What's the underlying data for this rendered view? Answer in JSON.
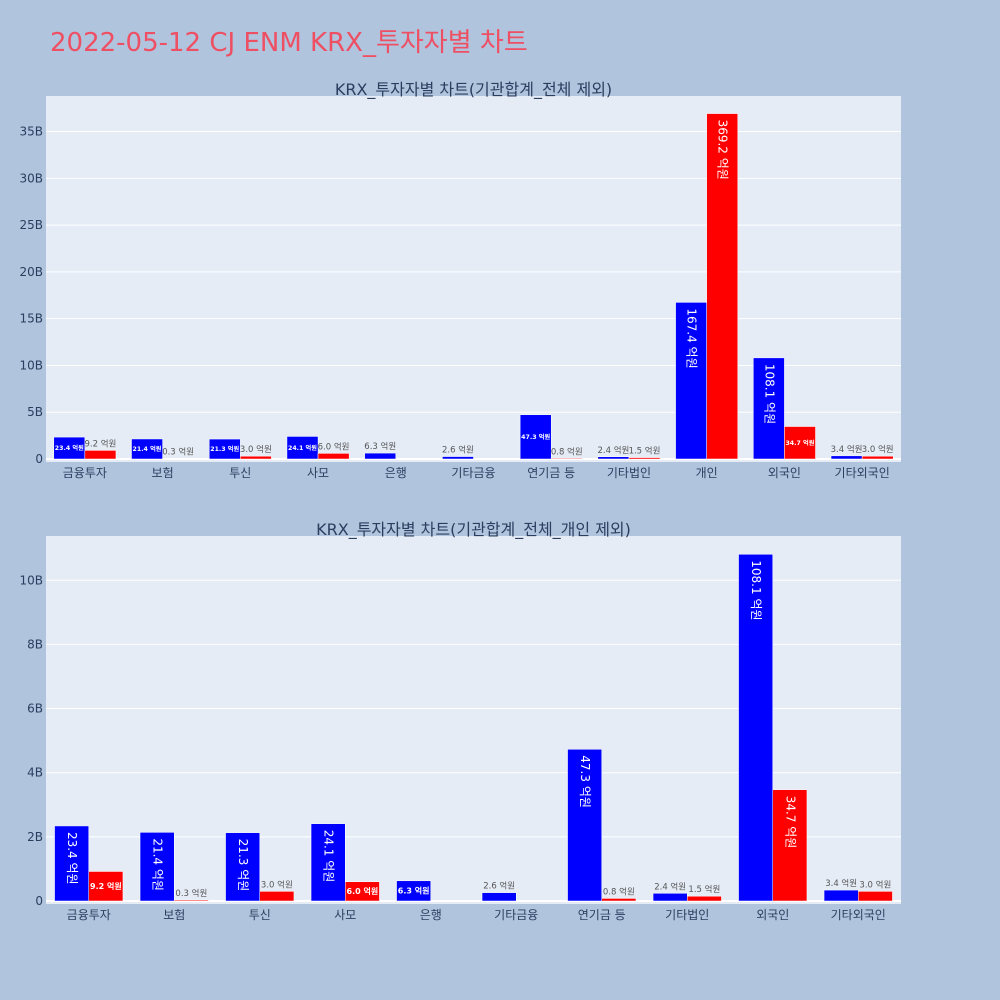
{
  "title": "2022-05-12 CJ ENM KRX_투자자별 차트",
  "colors": {
    "buy": "#0000ff",
    "sell": "#ff0000",
    "title": "#ef4f63",
    "plot_bg": "#e5ecf6",
    "page_bg": "#b0c4de"
  },
  "chart_data": [
    {
      "type": "bar",
      "title": "KRX_투자자별 차트(기관합계_전체 제외)",
      "categories": [
        "금융투자",
        "보험",
        "투신",
        "사모",
        "은행",
        "기타금융",
        "연기금 등",
        "기타법인",
        "개인",
        "외국인",
        "기타외국인"
      ],
      "series": [
        {
          "values": [
            2340000000,
            2140000000,
            2130000000,
            2410000000,
            630000000,
            260000000,
            4730000000,
            240000000,
            16740000000,
            10810000000,
            340000000
          ],
          "labels": [
            "23.4 억원",
            "21.4 억원",
            "21.3 억원",
            "24.1 억원",
            "6.3 억원",
            "2.6 억원",
            "47.3 억원",
            "2.4 억원",
            "167.4 억원",
            "108.1 억원",
            "3.4 억원"
          ]
        },
        {
          "values": [
            920000000,
            30000000,
            300000000,
            600000000,
            0,
            0,
            80000000,
            150000000,
            36920000000,
            3470000000,
            300000000
          ],
          "labels": [
            "9.2 억원",
            "0.3 억원",
            "3.0 억원",
            "6.0 억원",
            "",
            "",
            "0.8 억원",
            "1.5 억원",
            "369.2 억원",
            "34.7 억원",
            "3.0 억원"
          ]
        }
      ],
      "yticks": [
        0,
        5000000000,
        10000000000,
        15000000000,
        20000000000,
        25000000000,
        30000000000,
        35000000000
      ],
      "ytick_labels": [
        "0",
        "5B",
        "10B",
        "15B",
        "20B",
        "25B",
        "30B",
        "35B"
      ],
      "ylim": [
        0,
        38800000000
      ]
    },
    {
      "type": "bar",
      "title": "KRX_투자자별 차트(기관합계_전체_개인 제외)",
      "categories": [
        "금융투자",
        "보험",
        "투신",
        "사모",
        "은행",
        "기타금융",
        "연기금 등",
        "기타법인",
        "외국인",
        "기타외국인"
      ],
      "series": [
        {
          "values": [
            2340000000,
            2140000000,
            2130000000,
            2410000000,
            630000000,
            260000000,
            4730000000,
            240000000,
            10810000000,
            340000000
          ],
          "labels": [
            "23.4 억원",
            "21.4 억원",
            "21.3 억원",
            "24.1 억원",
            "6.3 억원",
            "2.6 억원",
            "47.3 억원",
            "2.4 억원",
            "108.1 억원",
            "3.4 억원"
          ]
        },
        {
          "values": [
            920000000,
            30000000,
            300000000,
            600000000,
            0,
            0,
            80000000,
            150000000,
            3470000000,
            300000000
          ],
          "labels": [
            "9.2 억원",
            "0.3 억원",
            "3.0 억원",
            "6.0 억원",
            "",
            "",
            "0.8 억원",
            "1.5 억원",
            "34.7 억원",
            "3.0 억원"
          ]
        }
      ],
      "yticks": [
        0,
        2000000000,
        4000000000,
        6000000000,
        8000000000,
        10000000000
      ],
      "ytick_labels": [
        "0",
        "2B",
        "4B",
        "6B",
        "8B",
        "10B"
      ],
      "ylim": [
        0,
        11380000000
      ]
    }
  ]
}
